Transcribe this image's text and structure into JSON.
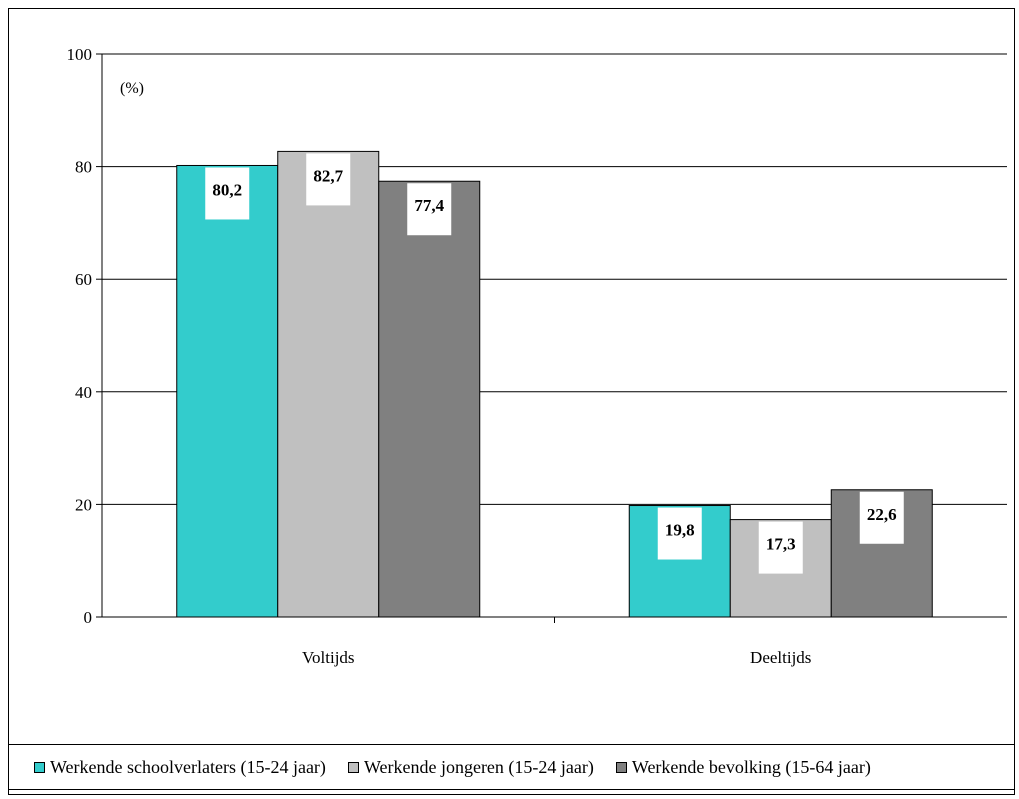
{
  "chart_data": {
    "type": "bar",
    "categories": [
      "Voltijds",
      "Deeltijds"
    ],
    "series": [
      {
        "name": "Werkende schoolverlaters (15-24 jaar)",
        "values": [
          80.2,
          19.8
        ],
        "labels": [
          "80,2",
          "19,8"
        ],
        "color": "#33CCCC"
      },
      {
        "name": "Werkende jongeren (15-24 jaar)",
        "values": [
          82.7,
          17.3
        ],
        "labels": [
          "82,7",
          "17,3"
        ],
        "color": "#C0C0C0"
      },
      {
        "name": "Werkende bevolking (15-64 jaar)",
        "values": [
          77.4,
          22.6
        ],
        "labels": [
          "77,4",
          "22,6"
        ],
        "color": "#808080"
      }
    ],
    "ylim": [
      0,
      100
    ],
    "yticks": [
      "0",
      "20",
      "40",
      "60",
      "80",
      "100"
    ],
    "unit_label": "(%)",
    "grid": true,
    "legend_position": "bottom"
  }
}
